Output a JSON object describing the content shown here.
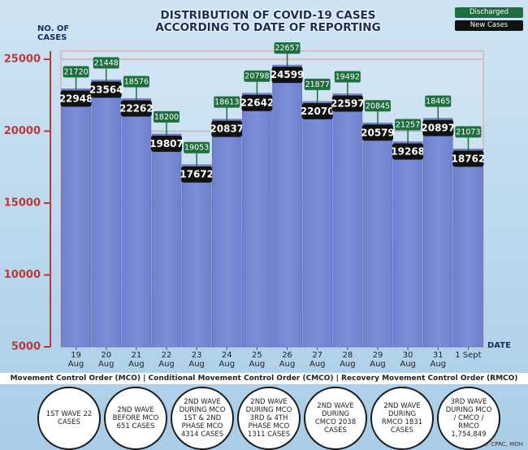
{
  "chart_data": {
    "type": "bar",
    "title": "DISTRIBUTION OF COVID-19 CASES ACCORDING TO DATE OF REPORTING",
    "y_label": "NO. OF CASES",
    "x_label": "DATE",
    "categories": [
      "19 Aug",
      "20 Aug",
      "21 Aug",
      "22 Aug",
      "23 Aug",
      "24 Aug",
      "25 Aug",
      "26 Aug",
      "27 Aug",
      "28 Aug",
      "29 Aug",
      "30 Aug",
      "31 Aug",
      "1 Sept"
    ],
    "series": [
      {
        "name": "New Cases",
        "color": "#7d8ed8",
        "values": [
          22948,
          23564,
          22262,
          19807,
          17672,
          20837,
          22642,
          24599,
          22070,
          22597,
          20579,
          19268,
          20897,
          18762
        ]
      },
      {
        "name": "Discharged",
        "color": "#1f6e3f",
        "values": [
          21720,
          21448,
          18576,
          18200,
          19053,
          18613,
          20798,
          22657,
          21877,
          19492,
          20845,
          21257,
          18465,
          21073
        ]
      }
    ],
    "ylim": [
      5000,
      25000
    ],
    "yticks": [
      5000,
      10000,
      15000,
      20000,
      25000
    ],
    "grid": true,
    "footer": "Movement Control Order (MCO) | Conditional Movement Control Order (CMCO) | Recovery Movement Control Order (RMCO)",
    "waves": [
      "1ST WAVE 22 CASES",
      "2ND WAVE BEFORE MCO 651 CASES",
      "2ND WAVE DURING MCO 1ST & 2ND PHASE MCO 4314 CASES",
      "2ND WAVE DURING MCO 3RD & 4TH PHASE MCO 1311 CASES",
      "2ND WAVE DURING CMCO 2038 CASES",
      "2ND WAVE DURING RMCO 1831 CASES",
      "3RD WAVE DURING MCO / CMCO / RMCO 1,754,849"
    ],
    "source": "Source: CPRC, MOH"
  }
}
